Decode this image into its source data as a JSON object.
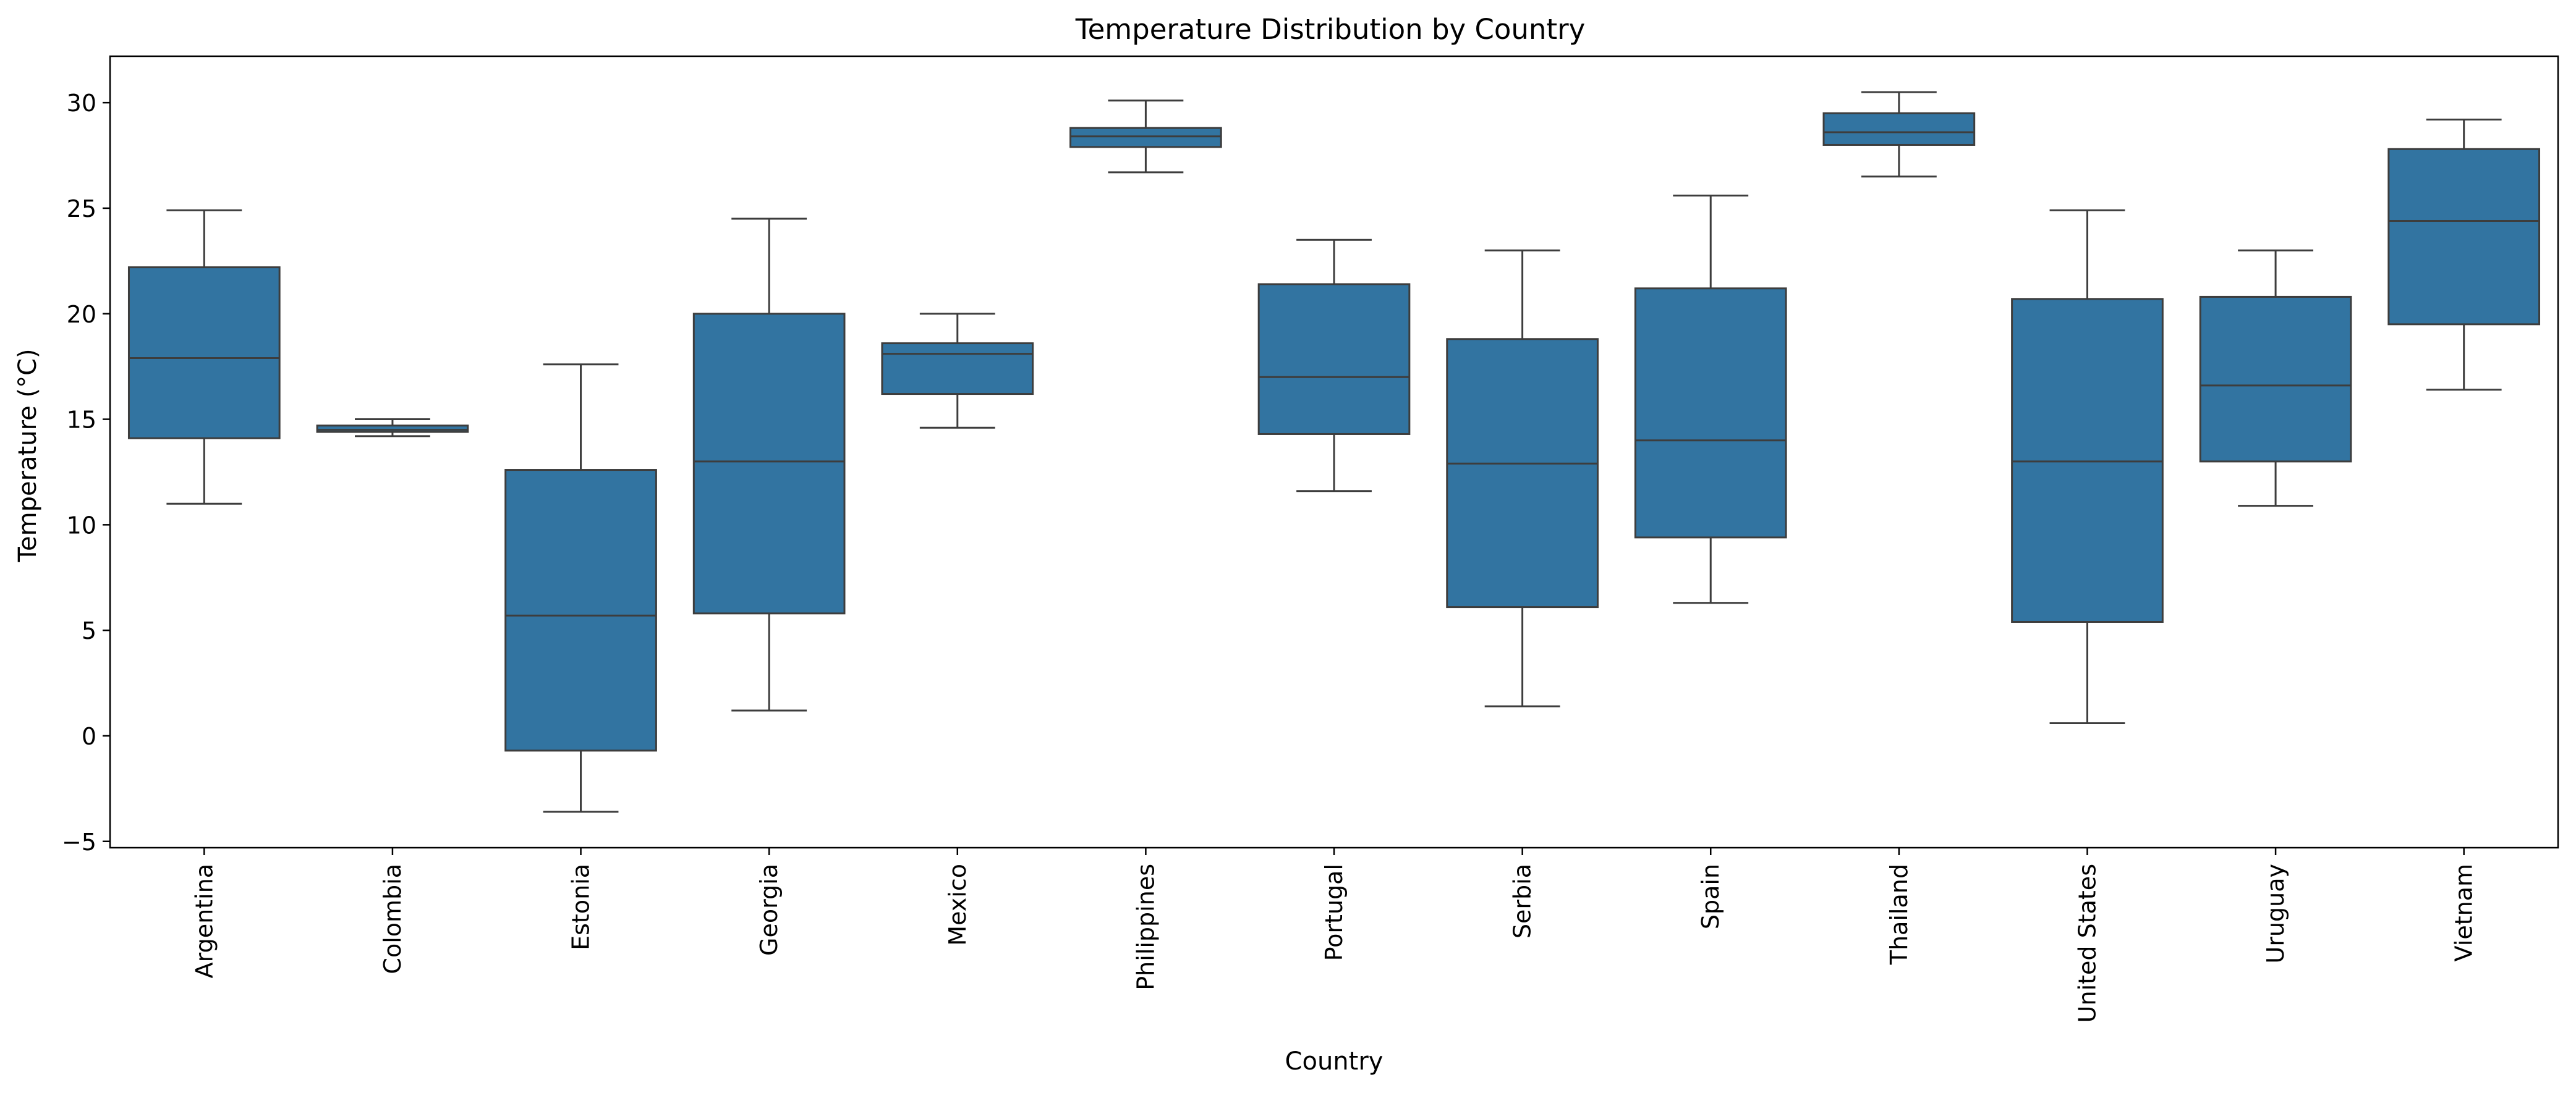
{
  "chart_data": {
    "type": "box",
    "title": "Temperature Distribution by Country",
    "xlabel": "Country",
    "ylabel": "Temperature (°C)",
    "ylim": [
      -5.3,
      32.2
    ],
    "yticks": [
      -5,
      0,
      5,
      10,
      15,
      20,
      25,
      30
    ],
    "grid": false,
    "box_color": "#3274a1",
    "line_color": "#3d3d3d",
    "categories": [
      "Argentina",
      "Colombia",
      "Estonia",
      "Georgia",
      "Mexico",
      "Philippines",
      "Portugal",
      "Serbia",
      "Spain",
      "Thailand",
      "United States",
      "Uruguay",
      "Vietnam"
    ],
    "boxes": [
      {
        "category": "Argentina",
        "whisker_low": 11.0,
        "q1": 14.1,
        "median": 17.9,
        "q3": 22.2,
        "whisker_high": 24.9
      },
      {
        "category": "Colombia",
        "whisker_low": 14.2,
        "q1": 14.4,
        "median": 14.5,
        "q3": 14.7,
        "whisker_high": 15.0
      },
      {
        "category": "Estonia",
        "whisker_low": -3.6,
        "q1": -0.7,
        "median": 5.7,
        "q3": 12.6,
        "whisker_high": 17.6
      },
      {
        "category": "Georgia",
        "whisker_low": 1.2,
        "q1": 5.8,
        "median": 13.0,
        "q3": 20.0,
        "whisker_high": 24.5
      },
      {
        "category": "Mexico",
        "whisker_low": 14.6,
        "q1": 16.2,
        "median": 18.1,
        "q3": 18.6,
        "whisker_high": 20.0
      },
      {
        "category": "Philippines",
        "whisker_low": 26.7,
        "q1": 27.9,
        "median": 28.4,
        "q3": 28.8,
        "whisker_high": 30.1
      },
      {
        "category": "Portugal",
        "whisker_low": 11.6,
        "q1": 14.3,
        "median": 17.0,
        "q3": 21.4,
        "whisker_high": 23.5
      },
      {
        "category": "Serbia",
        "whisker_low": 1.4,
        "q1": 6.1,
        "median": 12.9,
        "q3": 18.8,
        "whisker_high": 23.0
      },
      {
        "category": "Spain",
        "whisker_low": 6.3,
        "q1": 9.4,
        "median": 14.0,
        "q3": 21.2,
        "whisker_high": 25.6
      },
      {
        "category": "Thailand",
        "whisker_low": 26.5,
        "q1": 28.0,
        "median": 28.6,
        "q3": 29.5,
        "whisker_high": 30.5
      },
      {
        "category": "United States",
        "whisker_low": 0.6,
        "q1": 5.4,
        "median": 13.0,
        "q3": 20.7,
        "whisker_high": 24.9
      },
      {
        "category": "Uruguay",
        "whisker_low": 10.9,
        "q1": 13.0,
        "median": 16.6,
        "q3": 20.8,
        "whisker_high": 23.0
      },
      {
        "category": "Vietnam",
        "whisker_low": 16.4,
        "q1": 19.5,
        "median": 24.4,
        "q3": 27.8,
        "whisker_high": 29.2
      }
    ]
  }
}
